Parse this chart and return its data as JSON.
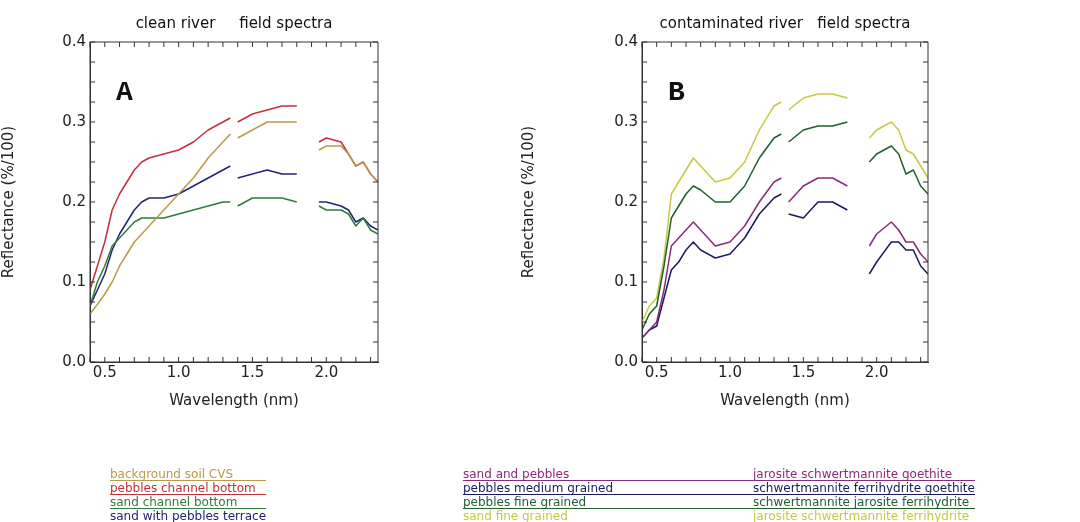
{
  "chart_data": [
    {
      "type": "line",
      "title": "clean river     field spectra",
      "xlabel": "Wavelength (nm)",
      "ylabel": "Reflectance (%/100)",
      "annotations": [
        "A"
      ],
      "legend": "bottom",
      "grid": false,
      "marker": "none",
      "line_style": "solid",
      "x": [
        0.4,
        0.45,
        0.5,
        0.55,
        0.6,
        0.65,
        0.7,
        0.75,
        0.8,
        0.9,
        1.0,
        1.1,
        1.2,
        1.3,
        1.35,
        1.37,
        1.4,
        1.5,
        1.6,
        1.7,
        1.8,
        1.87,
        1.95,
        2.0,
        2.1,
        2.15,
        2.2,
        2.25,
        2.3,
        2.35
      ],
      "xlim": [
        0.4,
        2.35
      ],
      "xticks": [
        {
          "value": 0.5,
          "label": "0.5"
        },
        {
          "value": 1.0,
          "label": "1.0"
        },
        {
          "value": 1.5,
          "label": "1.5"
        },
        {
          "value": 2.0,
          "label": "2.0"
        }
      ],
      "ylim": [
        0,
        0.4
      ],
      "yticks": [
        {
          "value": 0,
          "label": "0.0"
        },
        {
          "value": 0.1,
          "label": "0.1"
        },
        {
          "value": 0.2,
          "label": "0.2"
        },
        {
          "value": 0.3,
          "label": "0.3"
        },
        {
          "value": 0.4,
          "label": "0.4"
        }
      ],
      "series": [
        {
          "name": "background soil CVS",
          "color": "#b89a48",
          "values": [
            0.06,
            0.072,
            0.085,
            0.1,
            0.12,
            0.135,
            0.15,
            0.16,
            0.17,
            0.19,
            0.21,
            0.23,
            0.255,
            0.275,
            0.285,
            null,
            0.28,
            0.29,
            0.3,
            0.3,
            0.3,
            null,
            0.265,
            0.27,
            0.27,
            0.26,
            0.245,
            0.25,
            0.235,
            0.225
          ]
        },
        {
          "name": "pebbles channel bottom",
          "color": "#c0303a",
          "values": [
            0.09,
            0.12,
            0.15,
            0.19,
            0.21,
            0.225,
            0.24,
            0.25,
            0.255,
            0.26,
            0.265,
            0.275,
            0.29,
            0.3,
            0.305,
            null,
            0.3,
            0.31,
            0.315,
            0.32,
            0.32,
            null,
            0.275,
            0.28,
            0.275,
            0.26,
            0.245,
            0.25,
            0.235,
            0.225
          ]
        },
        {
          "name": "sand channel bottom",
          "color": "#2e7d3a",
          "values": [
            0.07,
            0.1,
            0.12,
            0.145,
            0.155,
            0.165,
            0.175,
            0.18,
            0.18,
            0.18,
            0.185,
            0.19,
            0.195,
            0.2,
            0.2,
            null,
            0.195,
            0.205,
            0.205,
            0.205,
            0.2,
            null,
            0.195,
            0.19,
            0.19,
            0.185,
            0.17,
            0.18,
            0.165,
            0.16
          ]
        },
        {
          "name": "sand with pebbles terrace",
          "color": "#22227a",
          "values": [
            0.07,
            0.09,
            0.11,
            0.14,
            0.16,
            0.175,
            0.19,
            0.2,
            0.205,
            0.205,
            0.21,
            0.22,
            0.23,
            0.24,
            0.245,
            null,
            0.23,
            0.235,
            0.24,
            0.235,
            0.235,
            null,
            0.2,
            0.2,
            0.195,
            0.19,
            0.175,
            0.18,
            0.17,
            0.165
          ]
        }
      ]
    },
    {
      "type": "line",
      "title": "contaminated river   field spectra",
      "xlabel": "Wavelength (nm)",
      "ylabel": "Reflectance (%/100)",
      "annotations": [
        "B",
        "jarosite schwertmannite goethite",
        "schwertmannite ferrihydrite goethite",
        "schwertmannite jarosite ferrihydrite",
        "jarosite schwertmannite ferrihydrite"
      ],
      "legend": "bottom",
      "grid": false,
      "marker": "none",
      "line_style": "solid",
      "x": [
        0.4,
        0.45,
        0.5,
        0.55,
        0.6,
        0.65,
        0.7,
        0.75,
        0.8,
        0.9,
        1.0,
        1.1,
        1.2,
        1.3,
        1.35,
        1.37,
        1.4,
        1.5,
        1.6,
        1.7,
        1.8,
        1.87,
        1.95,
        2.0,
        2.1,
        2.15,
        2.2,
        2.25,
        2.3,
        2.35
      ],
      "xlim": [
        0.4,
        2.35
      ],
      "xticks": [
        {
          "value": 0.5,
          "label": "0.5"
        },
        {
          "value": 1.0,
          "label": "1.0"
        },
        {
          "value": 1.5,
          "label": "1.5"
        },
        {
          "value": 2.0,
          "label": "2.0"
        }
      ],
      "ylim": [
        0,
        0.4
      ],
      "yticks": [
        {
          "value": 0,
          "label": "0.0"
        },
        {
          "value": 0.1,
          "label": "0.1"
        },
        {
          "value": 0.2,
          "label": "0.2"
        },
        {
          "value": 0.3,
          "label": "0.3"
        },
        {
          "value": 0.4,
          "label": "0.4"
        }
      ],
      "series": [
        {
          "name": "sand and pebbles",
          "color": "#8a2a7a",
          "values": [
            0.03,
            0.04,
            0.05,
            0.09,
            0.145,
            0.155,
            0.165,
            0.175,
            0.165,
            0.145,
            0.15,
            0.17,
            0.2,
            0.225,
            0.23,
            null,
            0.2,
            0.22,
            0.23,
            0.23,
            0.22,
            null,
            0.145,
            0.16,
            0.175,
            0.165,
            0.15,
            0.15,
            0.135,
            0.125
          ]
        },
        {
          "name": "pebbles medium grained",
          "color": "#1a1a60",
          "values": [
            0.03,
            0.04,
            0.045,
            0.08,
            0.115,
            0.125,
            0.14,
            0.15,
            0.14,
            0.13,
            0.135,
            0.155,
            0.185,
            0.205,
            0.21,
            null,
            0.185,
            0.18,
            0.2,
            0.2,
            0.19,
            null,
            0.11,
            0.125,
            0.15,
            0.15,
            0.14,
            0.14,
            0.12,
            0.11
          ]
        },
        {
          "name": "pebbles fine grained",
          "color": "#1f5f2a",
          "values": [
            0.04,
            0.06,
            0.07,
            0.12,
            0.18,
            0.195,
            0.21,
            0.22,
            0.215,
            0.2,
            0.2,
            0.22,
            0.255,
            0.28,
            0.285,
            null,
            0.275,
            0.29,
            0.295,
            0.295,
            0.3,
            null,
            0.25,
            0.26,
            0.27,
            0.26,
            0.235,
            0.24,
            0.22,
            0.21
          ]
        },
        {
          "name": "sand fine grained",
          "color": "#c8c840",
          "values": [
            0.05,
            0.07,
            0.08,
            0.13,
            0.21,
            0.225,
            0.24,
            0.255,
            0.245,
            0.225,
            0.23,
            0.25,
            0.29,
            0.32,
            0.325,
            null,
            0.315,
            0.33,
            0.335,
            0.335,
            0.33,
            null,
            0.28,
            0.29,
            0.3,
            0.29,
            0.265,
            0.26,
            0.245,
            0.23
          ]
        }
      ]
    }
  ]
}
